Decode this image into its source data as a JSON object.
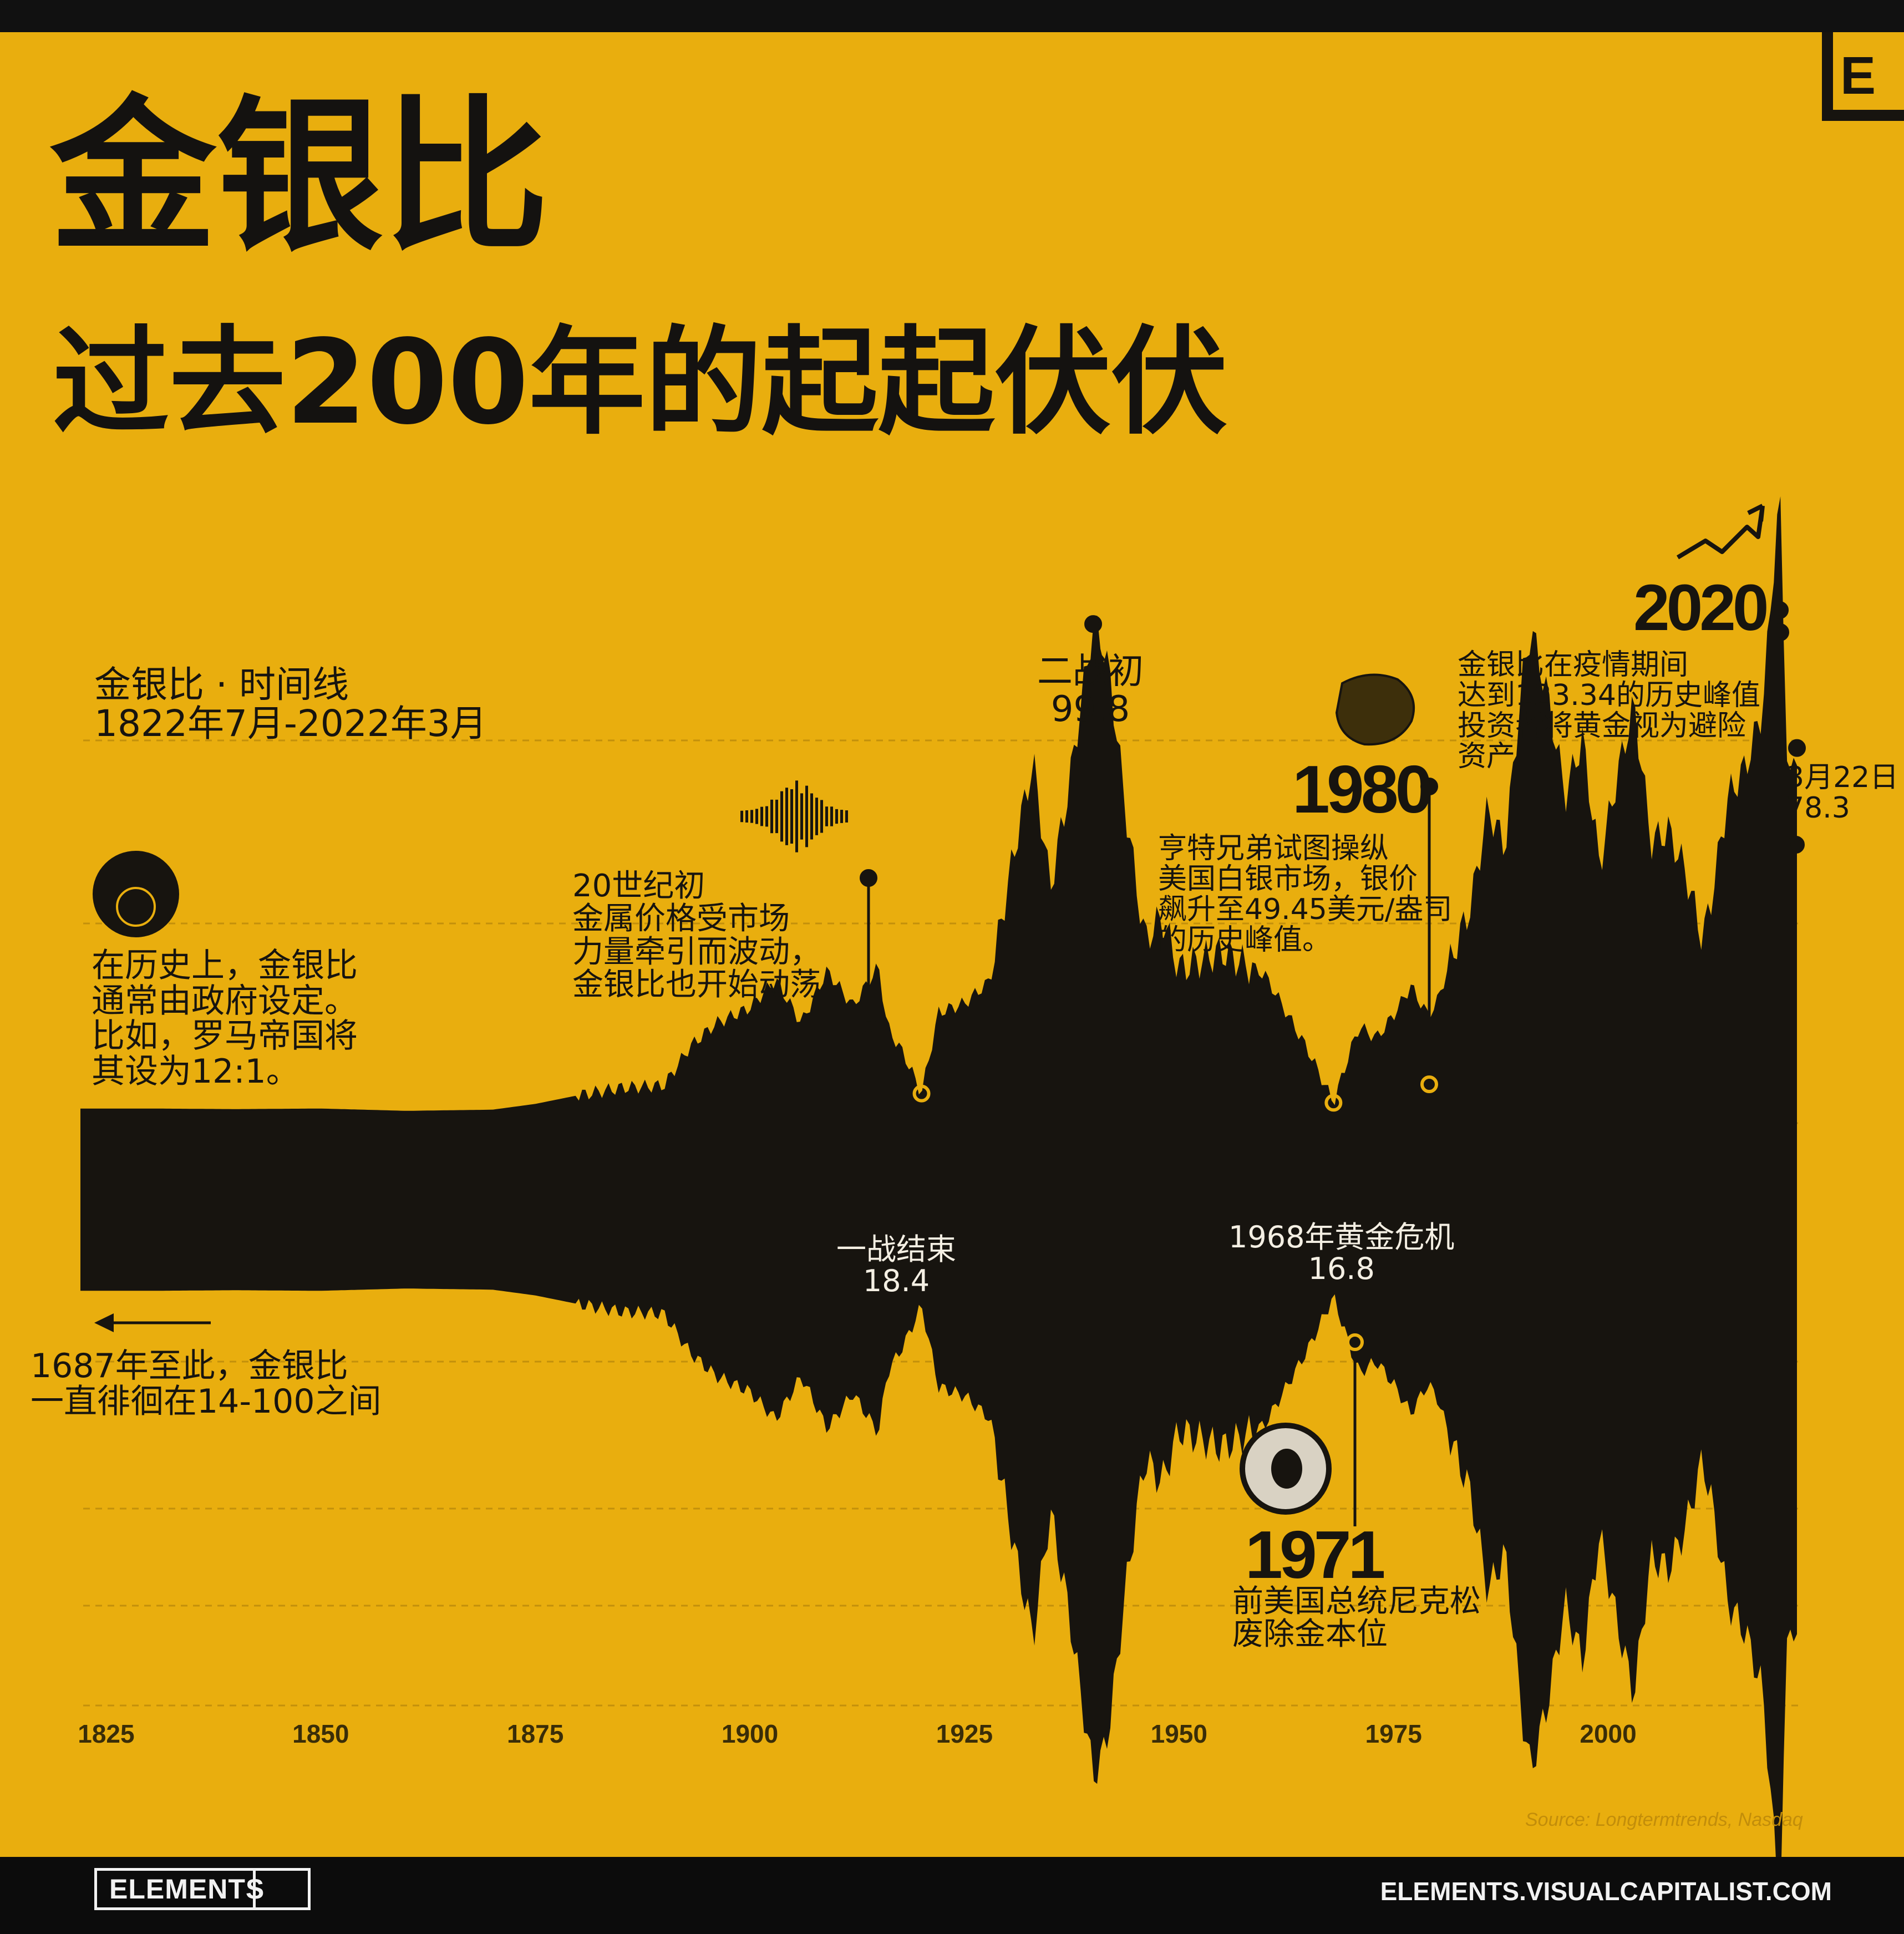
{
  "title": "金银比",
  "subtitle": "过去200年的起起伏伏",
  "timeline_label": "金银比 · 时间线\n1822年7月-2022年3月",
  "annotations": {
    "historical": "在历史上，金银比\n通常由政府设定。\n比如，罗马帝国将\n其设为12:1。",
    "range_1687": "1687年至此，金银比\n一直徘徊在14-100之间",
    "early_20c": "20世纪初\n金属价格受市场\n力量牵引而波动，\n金银比也开始动荡",
    "ww2": "二战初\n99.8",
    "ww1_end": "一战结束\n18.4",
    "gold_crisis": "1968年黄金危机\n16.8",
    "year_1980": "1980",
    "hunt": "亨特兄弟试图操纵\n美国白银市场，银价\n飙升至49.45美元/盎司\n的历史峰值。",
    "year_1971": "1971",
    "nixon": "前美国总统尼克松\n废除金本位",
    "year_2020": "2020",
    "pandemic": "金银比在疫情期间\n达到123.34的历史峰值\n投资者将黄金视为避险\n资产",
    "latest": "3月22日\n78.3"
  },
  "source": "Source: Longtermtrends, Nasdaq",
  "logo_letter": "E",
  "brand": "ELEMENTS",
  "website": "ELEMENTS.VISUALCAPITALIST.COM",
  "colors": {
    "background": "#e9ae0e",
    "ink": "#17140f",
    "footer": "#0c0c0c",
    "label_light": "#f4efe3"
  },
  "chart_data": {
    "type": "area",
    "style": "mirrored silhouette",
    "x_ticks": [
      "1825",
      "1850",
      "1875",
      "1900",
      "1925",
      "1950",
      "1975",
      "2000"
    ],
    "xlim": [
      1822,
      2022
    ],
    "ylim": [
      0,
      130
    ],
    "grid": "dashed horizontal",
    "series": [
      {
        "x": [
          1822,
          1830,
          1840,
          1850,
          1860,
          1870,
          1875,
          1880,
          1885,
          1890,
          1893,
          1896,
          1900,
          1903,
          1906,
          1909,
          1912,
          1915,
          1916,
          1918,
          1920,
          1922,
          1925,
          1928,
          1931,
          1933,
          1935,
          1937,
          1939,
          1940,
          1941,
          1942,
          1944,
          1946,
          1948,
          1950,
          1955,
          1960,
          1965,
          1968,
          1970,
          1971,
          1973,
          1975,
          1977,
          1979,
          1980,
          1982,
          1984,
          1986,
          1988,
          1990,
          1991,
          1993,
          1995,
          1997,
          1999,
          2001,
          2003,
          2005,
          2007,
          2009,
          2011,
          2012,
          2014,
          2016,
          2018,
          2020,
          2021,
          2022
        ],
        "y": [
          15.8,
          15.8,
          15.7,
          15.8,
          15.4,
          15.6,
          16.6,
          18.1,
          19.4,
          19.8,
          26.5,
          30.5,
          33.3,
          38.1,
          30.6,
          39.7,
          33.6,
          40.5,
          30.0,
          25.0,
          18.4,
          32.5,
          34.0,
          38.0,
          62.0,
          76.0,
          54.0,
          70.0,
          90.0,
          99.8,
          97.0,
          90.0,
          65.0,
          45.0,
          49.0,
          40.0,
          43.0,
          39.0,
          26.0,
          16.8,
          26.0,
          30.0,
          28.0,
          32.0,
          37.0,
          32.0,
          34.0,
          43.0,
          51.0,
          68.0,
          61.0,
          90.0,
          99.0,
          87.0,
          70.0,
          80.0,
          58.0,
          73.0,
          86.0,
          62.0,
          64.0,
          57.0,
          45.0,
          52.0,
          70.0,
          75.0,
          85.0,
          123.34,
          70.0,
          78.3
        ]
      }
    ],
    "labeled_points": [
      {
        "year": 1920,
        "value": 18.4,
        "label": "一战结束"
      },
      {
        "year": 1940,
        "value": 99.8,
        "label": "二战初"
      },
      {
        "year": 1968,
        "value": 16.8,
        "label": "1968年黄金危机"
      },
      {
        "year": 2020,
        "value": 123.34,
        "label": "2020"
      },
      {
        "year": 2022,
        "value": 78.3,
        "label": "3月22日"
      }
    ]
  }
}
